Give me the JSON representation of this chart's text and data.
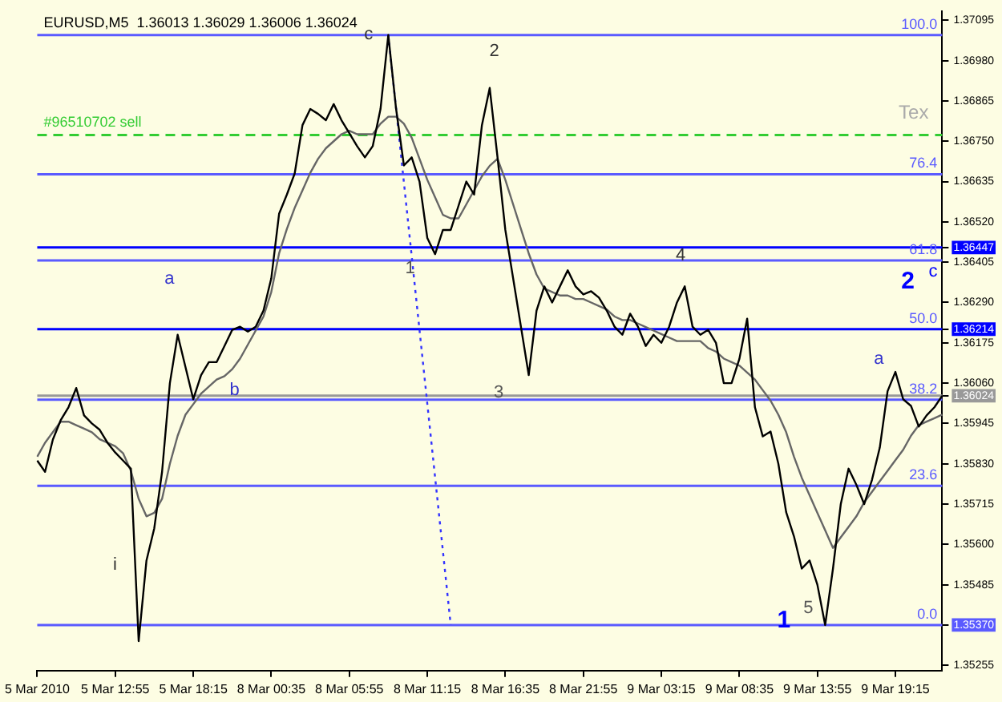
{
  "chart_data": {
    "type": "line",
    "title": "EURUSD,M5  1.36013 1.36029 1.36006 1.36024",
    "categories": [
      "5 Mar 2010",
      null,
      null,
      null,
      null,
      null,
      null,
      null,
      null,
      null,
      "5 Mar 12:55",
      null,
      null,
      null,
      null,
      null,
      null,
      null,
      null,
      null,
      "5 Mar 18:15",
      null,
      null,
      null,
      null,
      null,
      null,
      null,
      null,
      null,
      "8 Mar 00:35",
      null,
      null,
      null,
      null,
      null,
      null,
      null,
      null,
      null,
      "8 Mar 05:55",
      null,
      null,
      null,
      null,
      null,
      null,
      null,
      null,
      null,
      "8 Mar 11:15",
      null,
      null,
      null,
      null,
      null,
      null,
      null,
      null,
      null,
      "8 Mar 16:35",
      null,
      null,
      null,
      null,
      null,
      null,
      null,
      null,
      null,
      "8 Mar 21:55",
      null,
      null,
      null,
      null,
      null,
      null,
      null,
      null,
      null,
      "9 Mar 03:15",
      null,
      null,
      null,
      null,
      null,
      null,
      null,
      null,
      null,
      "9 Mar 08:35",
      null,
      null,
      null,
      null,
      null,
      null,
      null,
      null,
      null,
      "9 Mar 13:55",
      null,
      null,
      null,
      null,
      null,
      null,
      null,
      null,
      null,
      "9 Mar 19:15",
      null,
      null,
      null,
      null,
      null,
      null
    ],
    "series": [
      {
        "color": "#000000",
        "values": [
          1.35839,
          1.35807,
          1.35899,
          1.35954,
          1.35991,
          1.36046,
          1.35968,
          1.35945,
          1.35927,
          1.3589,
          1.35862,
          1.35839,
          1.35816,
          1.35324,
          1.35554,
          1.35646,
          1.35807,
          1.3606,
          1.36198,
          1.36106,
          1.36014,
          1.36083,
          1.3612,
          1.3612,
          1.36166,
          1.36212,
          1.36221,
          1.36207,
          1.36221,
          1.36267,
          1.36359,
          1.36543,
          1.36598,
          1.36658,
          1.36796,
          1.36842,
          1.36828,
          1.3681,
          1.36856,
          1.3681,
          1.36773,
          1.36736,
          1.36704,
          1.36736,
          1.36842,
          1.37053,
          1.36842,
          1.36681,
          1.36704,
          1.36635,
          1.36474,
          1.36428,
          1.36497,
          1.36497,
          1.36566,
          1.36635,
          1.36598,
          1.36796,
          1.36902,
          1.36704,
          1.36497,
          1.36359,
          1.36221,
          1.36083,
          1.36267,
          1.36336,
          1.3629,
          1.36336,
          1.36382,
          1.36336,
          1.36313,
          1.36322,
          1.36304,
          1.36267,
          1.36221,
          1.36198,
          1.36258,
          1.36221,
          1.36166,
          1.36198,
          1.36175,
          1.36221,
          1.3629,
          1.36336,
          1.36221,
          1.36198,
          1.36212,
          1.36175,
          1.3606,
          1.3606,
          1.36129,
          1.36244,
          1.35991,
          1.35908,
          1.35922,
          1.3583,
          1.35692,
          1.35623,
          1.35531,
          1.35554,
          1.35485,
          1.3537,
          1.35531,
          1.35715,
          1.35816,
          1.3577,
          1.35715,
          1.35784,
          1.35876,
          1.36037,
          1.36092,
          1.36014,
          1.35995,
          1.35936,
          1.35968,
          1.35991,
          1.36024
        ]
      },
      {
        "color": "#666666",
        "values": [
          1.3585,
          1.3589,
          1.3592,
          1.3595,
          1.3595,
          1.3594,
          1.3593,
          1.3592,
          1.359,
          1.3589,
          1.3588,
          1.3586,
          1.3581,
          1.3573,
          1.3568,
          1.3569,
          1.3573,
          1.3583,
          1.3591,
          1.3597,
          1.36,
          1.3603,
          1.3605,
          1.3607,
          1.3608,
          1.361,
          1.3613,
          1.3617,
          1.3621,
          1.3625,
          1.3632,
          1.3643,
          1.365,
          1.3656,
          1.3661,
          1.3666,
          1.367,
          1.3673,
          1.3675,
          1.3677,
          1.3678,
          1.3677,
          1.3677,
          1.3677,
          1.368,
          1.3682,
          1.3682,
          1.368,
          1.3676,
          1.367,
          1.3664,
          1.3659,
          1.3654,
          1.3653,
          1.3653,
          1.3657,
          1.3661,
          1.3665,
          1.3668,
          1.367,
          1.3664,
          1.3657,
          1.365,
          1.3643,
          1.3637,
          1.3633,
          1.3632,
          1.3631,
          1.3631,
          1.363,
          1.363,
          1.3629,
          1.3628,
          1.3627,
          1.3625,
          1.3624,
          1.3624,
          1.3623,
          1.3622,
          1.3621,
          1.362,
          1.3619,
          1.3618,
          1.3618,
          1.3618,
          1.3618,
          1.3616,
          1.3615,
          1.3613,
          1.3612,
          1.3611,
          1.3609,
          1.3607,
          1.3604,
          1.3601,
          1.3597,
          1.3592,
          1.3585,
          1.3579,
          1.3574,
          1.3569,
          1.3564,
          1.3559,
          1.3562,
          1.3565,
          1.3568,
          1.3572,
          1.3575,
          1.3578,
          1.3581,
          1.3584,
          1.3587,
          1.3591,
          1.3594,
          1.3595,
          1.3596,
          1.3597
        ]
      },
      {
        "color": "#3333ff",
        "line_style": "dotted",
        "values": [
          null,
          null,
          null,
          null,
          null,
          null,
          null,
          null,
          null,
          null,
          null,
          null,
          null,
          null,
          null,
          null,
          null,
          null,
          null,
          null,
          null,
          null,
          null,
          null,
          null,
          null,
          null,
          null,
          null,
          null,
          null,
          null,
          null,
          null,
          null,
          null,
          null,
          null,
          null,
          null,
          null,
          null,
          null,
          null,
          null,
          1.37053,
          null,
          null,
          null,
          null,
          null,
          null,
          null,
          1.3537,
          null,
          null,
          null,
          null,
          null,
          null,
          null,
          null,
          null,
          null,
          null,
          null,
          null,
          null,
          null,
          null,
          null,
          null,
          null,
          null,
          null,
          null,
          null,
          null,
          null,
          null,
          null,
          null,
          null,
          null,
          null,
          null,
          null,
          null,
          null,
          null,
          null,
          null,
          null,
          null,
          null,
          null,
          null,
          null,
          null,
          null,
          null,
          null,
          null,
          null,
          null,
          null,
          null,
          null,
          null,
          null,
          null,
          null,
          null,
          null,
          null,
          null,
          null
        ]
      }
    ],
    "ylim": [
      1.3524,
      1.3712
    ],
    "yticks": [
      1.37095,
      {
        "value": 1.3698,
        "label": "1.36980"
      },
      1.36865,
      {
        "value": 1.3675,
        "label": "1.36750"
      },
      1.36635,
      {
        "value": 1.3652,
        "label": "1.36520"
      },
      1.36405,
      {
        "value": 1.3629,
        "label": "1.36290"
      },
      1.36175,
      {
        "value": 1.3606,
        "label": "1.36060"
      },
      1.35945,
      {
        "value": 1.3583,
        "label": "1.35830"
      },
      1.35715,
      {
        "value": 1.356,
        "label": "1.35600"
      },
      1.35485,
      {
        "value": 1.3537,
        "label": "1.35370"
      },
      1.35255,
      1.36447,
      1.36214,
      1.36024
    ],
    "ref_lines": [
      {
        "axis": "y",
        "value": 1.37053,
        "color": "#5a5aff"
      },
      {
        "axis": "y",
        "value": 1.36656,
        "color": "#5a5aff"
      },
      {
        "axis": "y",
        "value": 1.3641,
        "color": "#5a5aff"
      },
      {
        "axis": "y",
        "value": 1.36013,
        "color": "#5a5aff"
      },
      {
        "axis": "y",
        "value": 1.35767,
        "color": "#5a5aff"
      },
      {
        "axis": "y",
        "value": 1.3537,
        "color": "#5a5aff"
      },
      {
        "axis": "y",
        "value": 1.36447,
        "color": "#0000ff"
      },
      {
        "axis": "y",
        "value": 1.36214,
        "color": "#0000ff"
      },
      {
        "axis": "y",
        "value": 1.36024,
        "color": "#999999"
      },
      {
        "axis": "y",
        "value": 1.36768,
        "label": "#96510702 sell",
        "color": "#33cc33",
        "line_style": "dashed"
      }
    ],
    "annotations": [
      "Tex",
      {
        "text": "100.0",
        "y": 1.37053
      },
      {
        "text": "76.4",
        "y": 1.36656
      },
      {
        "text": "61.8",
        "y": 1.3641
      },
      {
        "text": "50.0",
        "y": 1.36214
      },
      {
        "text": "38.2",
        "y": 1.36013
      },
      {
        "text": "23.6",
        "y": 1.35767
      },
      {
        "text": "0.0",
        "y": 1.3537
      },
      "i",
      "a",
      "b",
      "c",
      "1",
      "2",
      "3",
      "4",
      "1",
      "5",
      "a",
      "2",
      "c"
    ],
    "grid": false,
    "legend": false
  }
}
